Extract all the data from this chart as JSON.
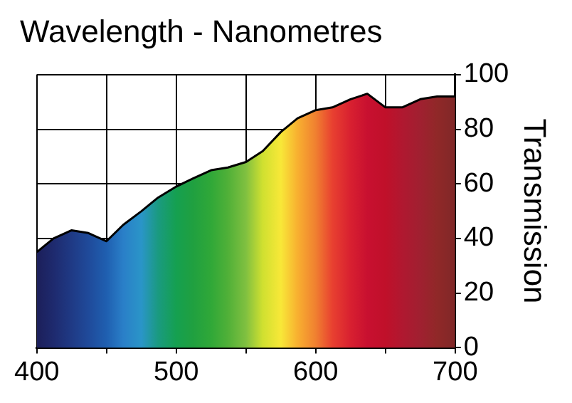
{
  "chart_data": {
    "type": "area",
    "title": "Wavelength - Nanometres",
    "ylabel": "Transmission",
    "x": [
      400,
      412,
      425,
      437,
      450,
      462,
      475,
      487,
      500,
      512,
      525,
      537,
      550,
      562,
      575,
      587,
      600,
      612,
      625,
      637,
      650,
      662,
      675,
      687,
      700
    ],
    "series": [
      {
        "color": "#000000",
        "values": [
          35,
          40,
          43,
          42,
          39,
          45,
          50,
          55,
          59,
          62,
          65,
          66,
          68,
          72,
          79,
          84,
          87,
          88,
          91,
          93,
          88,
          88,
          91,
          92,
          92
        ],
        "colors": [
          "#1c1f5a",
          "#1e2a6e",
          "#1f3a85",
          "#1f4a9a",
          "#1f5fb0",
          "#2a7fc8",
          "#2a95c8",
          "#1a9a80",
          "#15a050",
          "#20a040",
          "#30a838",
          "#50b038",
          "#80c040",
          "#d0e030",
          "#f8e838",
          "#f8b030",
          "#f08030",
          "#e84030",
          "#d82030",
          "#c81030",
          "#c0102a",
          "#b01830",
          "#a02030",
          "#902828",
          "#802828"
        ]
      }
    ],
    "xlim": [
      400,
      700
    ],
    "xticks": [
      400,
      {
        "value": 450,
        "label": null
      },
      500,
      {
        "value": 550,
        "label": null
      },
      600,
      {
        "value": 650,
        "label": null
      },
      700
    ],
    "ylim": [
      0,
      100
    ],
    "yticks": [
      0,
      20,
      40,
      60,
      80,
      100
    ],
    "grid": true,
    "legend": false
  }
}
